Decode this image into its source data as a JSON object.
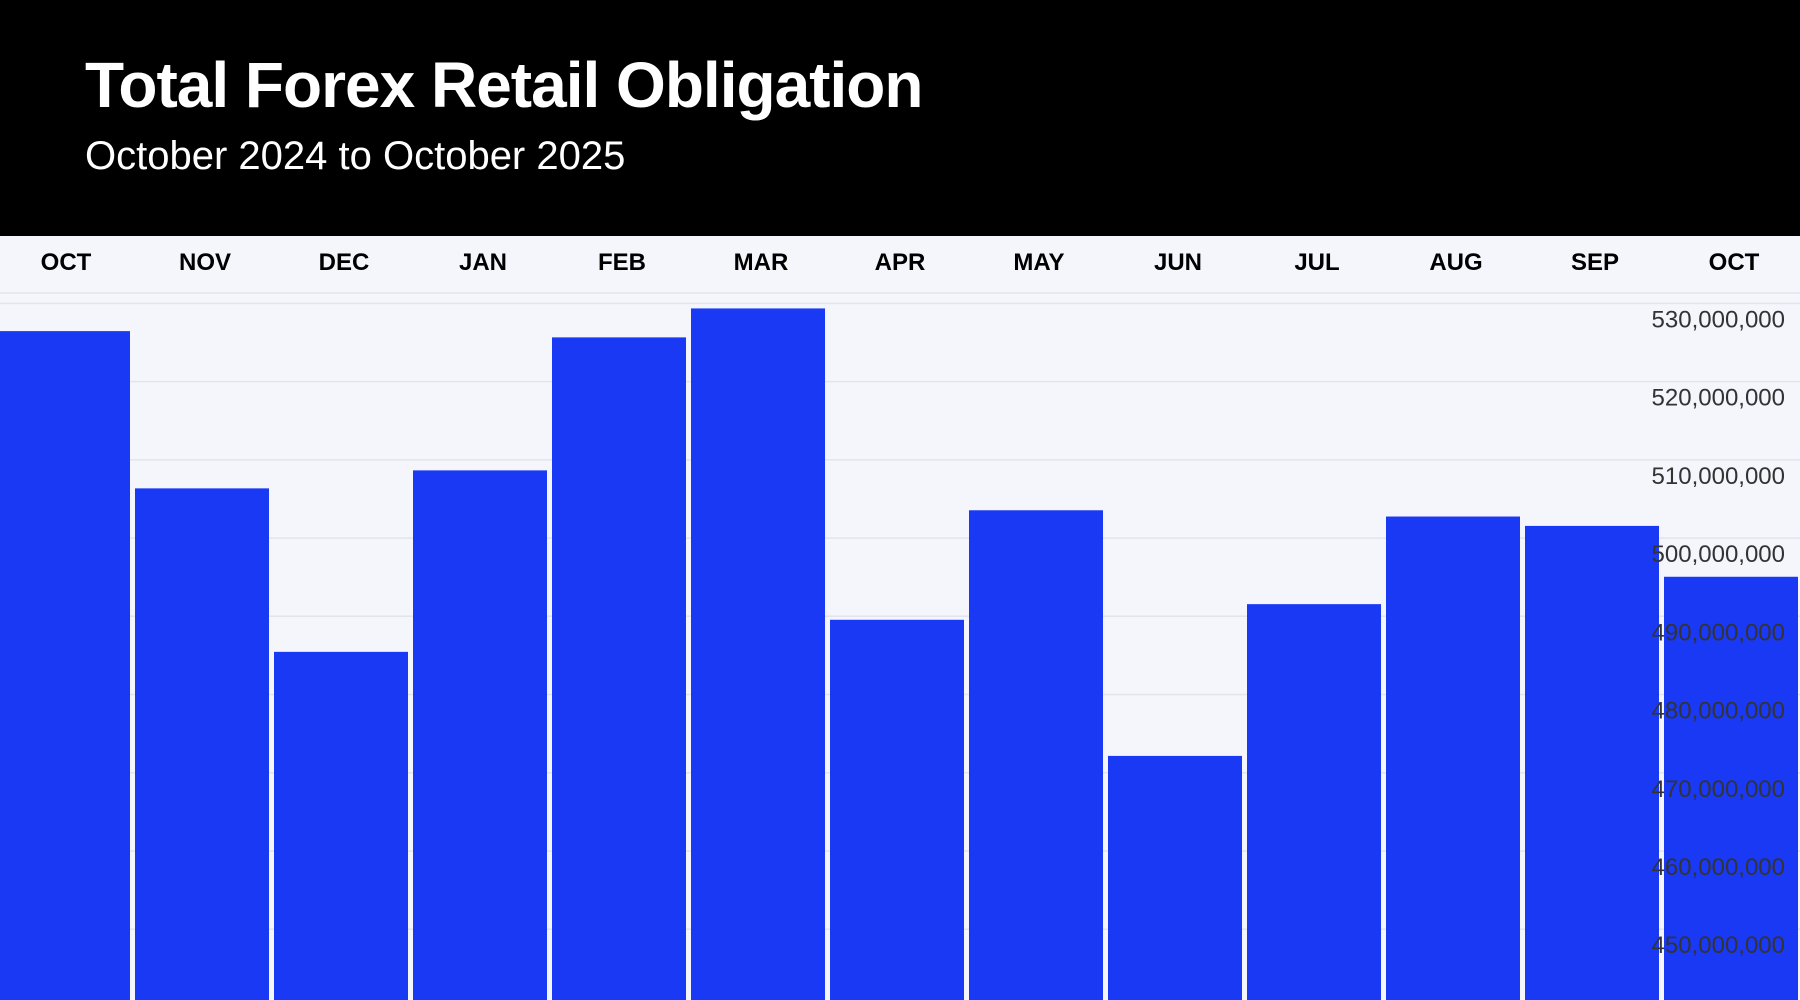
{
  "header": {
    "title": "Total Forex Retail Obligation",
    "subtitle": "October 2024 to October 2025"
  },
  "colors": {
    "header_bg": "#000000",
    "plot_bg": "#f5f5fc",
    "bar": "#1435f5",
    "grid": "#e4e4ee"
  },
  "chart_data": {
    "type": "bar",
    "title": "Total Forex Retail Obligation",
    "subtitle": "October 2024 to October 2025",
    "categories": [
      "OCT",
      "NOV",
      "DEC",
      "JAN",
      "FEB",
      "MAR",
      "APR",
      "MAY",
      "JUN",
      "JUL",
      "AUG",
      "SEP",
      "OCT"
    ],
    "values": [
      528500000,
      508400000,
      487500000,
      510700000,
      527700000,
      531400000,
      491600000,
      505600000,
      474200000,
      493600000,
      504800000,
      503600000,
      497100000
    ],
    "ylim": [
      443000000,
      533500000
    ],
    "yticks": [
      450000000,
      460000000,
      470000000,
      480000000,
      490000000,
      500000000,
      510000000,
      520000000,
      530000000
    ],
    "ytick_labels": [
      "450,000,000",
      "460,000,000",
      "470,000,000",
      "480,000,000",
      "490,000,000",
      "500,000,000",
      "510,000,000",
      "520,000,000",
      "530,000,000"
    ],
    "y_axis_side": "right",
    "x_axis_side": "top",
    "grid": true
  }
}
